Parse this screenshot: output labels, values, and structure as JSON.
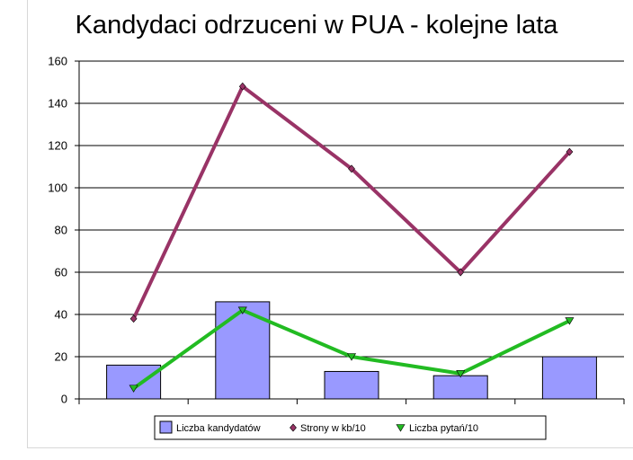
{
  "chart_data": {
    "type": "bar",
    "title": "Kandydaci odrzuceni w PUA - kolejne lata",
    "xlabel": "",
    "ylabel": "",
    "ylim": [
      0,
      160
    ],
    "yticks": [
      0,
      20,
      40,
      60,
      80,
      100,
      120,
      140,
      160
    ],
    "grid": true,
    "legend_position": "bottom",
    "categories": [
      "",
      "",
      "",
      "",
      ""
    ],
    "series": [
      {
        "name": "Liczba kandydatów",
        "type": "bar",
        "color": "#9999ff",
        "values": [
          16,
          46,
          13,
          11,
          20
        ]
      },
      {
        "name": "Strony w kb/10",
        "type": "line",
        "marker": "diamond",
        "color": "#993366",
        "values": [
          38,
          148,
          109,
          60,
          117
        ]
      },
      {
        "name": "Liczba pytań/10",
        "type": "line",
        "marker": "triangle-down",
        "color": "#22bb22",
        "values": [
          5,
          42,
          20,
          12,
          37
        ]
      }
    ]
  }
}
